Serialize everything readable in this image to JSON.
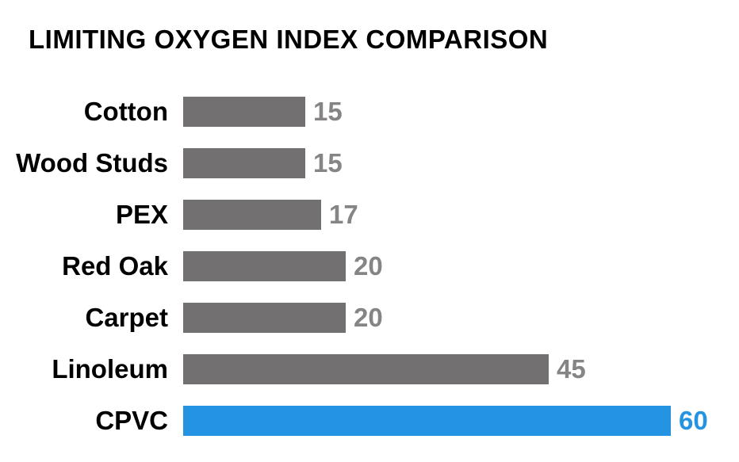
{
  "title": "LIMITING OXYGEN INDEX COMPARISON",
  "chart_data": {
    "type": "bar",
    "orientation": "horizontal",
    "title": "LIMITING OXYGEN INDEX COMPARISON",
    "categories": [
      "Cotton",
      "Wood Studs",
      "PEX",
      "Red Oak",
      "Carpet",
      "Linoleum",
      "CPVC"
    ],
    "values": [
      15,
      15,
      17,
      20,
      20,
      45,
      60
    ],
    "value_labels": [
      "15",
      "15",
      "17",
      "20",
      "20",
      "45",
      "60"
    ],
    "highlight_category": "CPVC",
    "xlim": [
      0,
      60
    ],
    "grid": false,
    "legend": false,
    "xlabel": "",
    "ylabel": "",
    "colors": {
      "background": "#ffffff",
      "title_text": "#000000",
      "category_text": "#000000",
      "bar_default": "#727070",
      "bar_highlight": "#2494e2",
      "value_text_default": "#868484",
      "value_text_highlight": "#2494e2"
    }
  }
}
